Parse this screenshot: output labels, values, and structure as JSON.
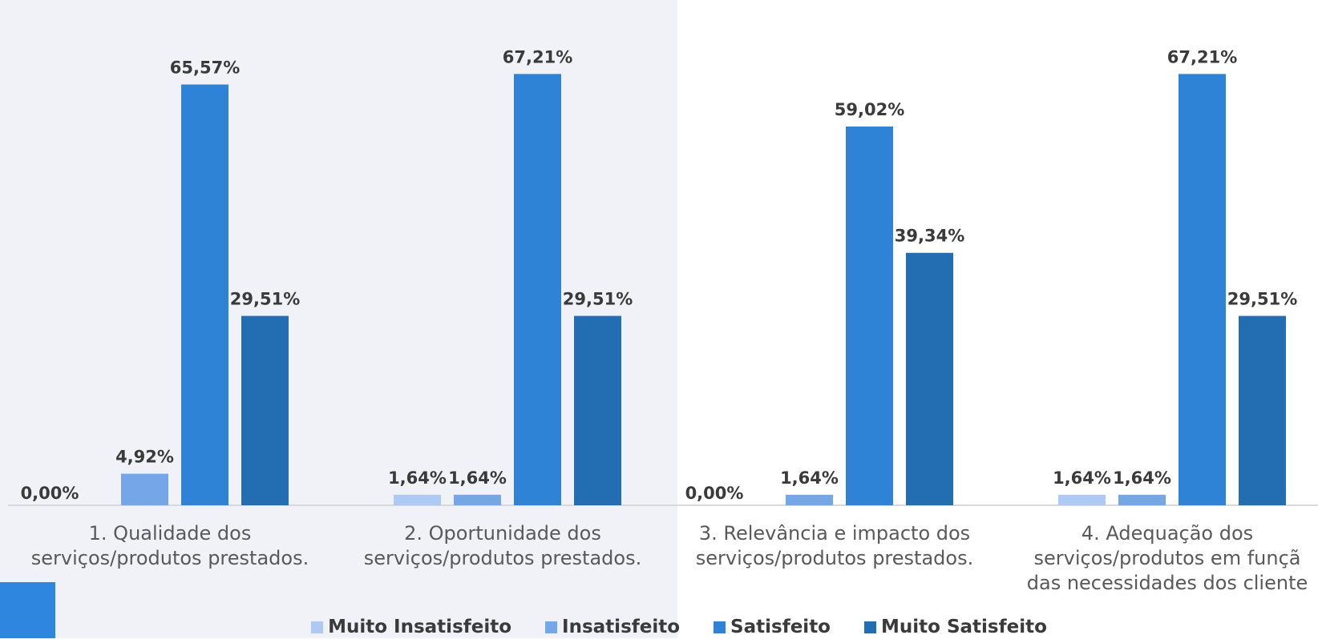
{
  "chart_data": {
    "type": "bar",
    "categories": [
      [
        "1. Qualidade dos",
        "serviços/produtos prestados."
      ],
      [
        "2. Oportunidade dos",
        "serviços/produtos prestados."
      ],
      [
        "3. Relevância e impacto dos",
        "serviços/produtos prestados."
      ],
      [
        "4. Adequação dos",
        "serviços/produtos em funçã",
        "das necessidades dos cliente"
      ]
    ],
    "series": [
      {
        "name": "Muito Insatisfeito",
        "color": "#aec9f2",
        "values": [
          0.0,
          1.64,
          0.0,
          1.64
        ],
        "labels": [
          "0,00%",
          "1,64%",
          "0,00%",
          "1,64%"
        ]
      },
      {
        "name": "Insatisfeito",
        "color": "#75a7e8",
        "values": [
          4.92,
          1.64,
          1.64,
          1.64
        ],
        "labels": [
          "4,92%",
          "1,64%",
          "1,64%",
          "1,64%"
        ]
      },
      {
        "name": "Satisfeito",
        "color": "#2e83d6",
        "values": [
          65.57,
          67.21,
          59.02,
          67.21
        ],
        "labels": [
          "65,57%",
          "67,21%",
          "59,02%",
          "67,21%"
        ]
      },
      {
        "name": "Muito Satisfeito",
        "color": "#236db3",
        "values": [
          29.51,
          29.51,
          39.34,
          29.51
        ],
        "labels": [
          "29,51%",
          "29,51%",
          "39,34%",
          "29,51%"
        ]
      }
    ],
    "ylim": [
      0,
      72.5
    ],
    "grid": false,
    "legend_position": "bottom",
    "title": "",
    "xlabel": "",
    "ylabel": ""
  },
  "colors": {
    "left_panel_background": "#f0f2f8",
    "accent_square": "#2e86de",
    "axis_line": "#d9d9d9"
  }
}
